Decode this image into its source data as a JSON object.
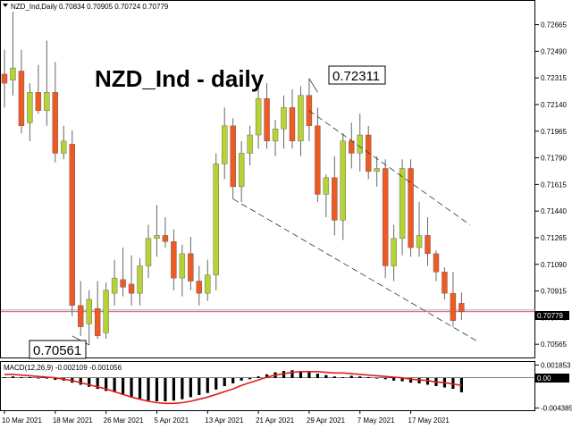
{
  "window": {
    "symbol_info": "NZD_Ind,Daily",
    "ohlc_readout": "0.70834 0.70905 0.70724 0.70779"
  },
  "annotations": {
    "title": "NZD_Ind - daily",
    "high_label": "0.72311",
    "low_label": "0.70561",
    "current_price_label": "0.70779"
  },
  "colors": {
    "bull": "#b5d334",
    "bear": "#ee5a24",
    "wick": "#666666",
    "signal": "#e11d1d",
    "histogram": "#000000",
    "trendline": "#333333",
    "price_line": "#cc2222",
    "price_line_2": "#8888cc"
  },
  "chart_data": [
    {
      "type": "candlestick",
      "x_tick_labels": [
        "10 Mar 2021",
        "18 Mar 2021",
        "26 Mar 2021",
        "5 Apr 2021",
        "13 Apr 2021",
        "21 Apr 2021",
        "29 Apr 2021",
        "7 May 2021",
        "17 May 2021"
      ],
      "x_tick_index": [
        0,
        6,
        12,
        18,
        24,
        30,
        36,
        42,
        48
      ],
      "ylim": [
        0.70478,
        0.72821
      ],
      "y_tick_labels": [
        "0.72665",
        "0.72490",
        "0.72315",
        "0.72140",
        "0.71965",
        "0.71790",
        "0.71615",
        "0.71440",
        "0.71265",
        "0.71090",
        "0.70915",
        "0.70740",
        "0.70565"
      ],
      "current_price": 0.70779,
      "price_line_2": 0.7079,
      "candles": [
        {
          "o": 0.7234,
          "h": 0.725,
          "l": 0.7212,
          "c": 0.7228
        },
        {
          "o": 0.723,
          "h": 0.7275,
          "l": 0.722,
          "c": 0.7238
        },
        {
          "o": 0.7236,
          "h": 0.725,
          "l": 0.7195,
          "c": 0.72
        },
        {
          "o": 0.7202,
          "h": 0.7228,
          "l": 0.719,
          "c": 0.7222
        },
        {
          "o": 0.7222,
          "h": 0.724,
          "l": 0.7208,
          "c": 0.721
        },
        {
          "o": 0.721,
          "h": 0.7256,
          "l": 0.72,
          "c": 0.7222
        },
        {
          "o": 0.7222,
          "h": 0.7242,
          "l": 0.7176,
          "c": 0.7182
        },
        {
          "o": 0.7182,
          "h": 0.72,
          "l": 0.7178,
          "c": 0.719
        },
        {
          "o": 0.7188,
          "h": 0.7197,
          "l": 0.7075,
          "c": 0.7082
        },
        {
          "o": 0.7082,
          "h": 0.7098,
          "l": 0.7062,
          "c": 0.7068
        },
        {
          "o": 0.707,
          "h": 0.7092,
          "l": 0.7056,
          "c": 0.7086
        },
        {
          "o": 0.708,
          "h": 0.7098,
          "l": 0.706,
          "c": 0.7062
        },
        {
          "o": 0.7064,
          "h": 0.7097,
          "l": 0.706,
          "c": 0.7092
        },
        {
          "o": 0.709,
          "h": 0.7112,
          "l": 0.7082,
          "c": 0.71
        },
        {
          "o": 0.7099,
          "h": 0.712,
          "l": 0.7088,
          "c": 0.7094
        },
        {
          "o": 0.7096,
          "h": 0.7115,
          "l": 0.7082,
          "c": 0.709
        },
        {
          "o": 0.709,
          "h": 0.7113,
          "l": 0.7082,
          "c": 0.7108
        },
        {
          "o": 0.7108,
          "h": 0.7135,
          "l": 0.71,
          "c": 0.7126
        },
        {
          "o": 0.7126,
          "h": 0.7148,
          "l": 0.7114,
          "c": 0.7128
        },
        {
          "o": 0.7128,
          "h": 0.714,
          "l": 0.712,
          "c": 0.7124
        },
        {
          "o": 0.7124,
          "h": 0.7132,
          "l": 0.7092,
          "c": 0.71
        },
        {
          "o": 0.71,
          "h": 0.7122,
          "l": 0.7088,
          "c": 0.7116
        },
        {
          "o": 0.7116,
          "h": 0.7127,
          "l": 0.7092,
          "c": 0.7098
        },
        {
          "o": 0.7098,
          "h": 0.7108,
          "l": 0.7082,
          "c": 0.709
        },
        {
          "o": 0.709,
          "h": 0.7112,
          "l": 0.7085,
          "c": 0.7102
        },
        {
          "o": 0.7102,
          "h": 0.7182,
          "l": 0.7092,
          "c": 0.7175
        },
        {
          "o": 0.7175,
          "h": 0.7212,
          "l": 0.7165,
          "c": 0.72
        },
        {
          "o": 0.72,
          "h": 0.7205,
          "l": 0.7152,
          "c": 0.716
        },
        {
          "o": 0.716,
          "h": 0.719,
          "l": 0.715,
          "c": 0.7182
        },
        {
          "o": 0.7182,
          "h": 0.72,
          "l": 0.7174,
          "c": 0.7194
        },
        {
          "o": 0.7194,
          "h": 0.7225,
          "l": 0.7185,
          "c": 0.7218
        },
        {
          "o": 0.7218,
          "h": 0.7228,
          "l": 0.7185,
          "c": 0.719
        },
        {
          "o": 0.719,
          "h": 0.7204,
          "l": 0.718,
          "c": 0.7198
        },
        {
          "o": 0.7198,
          "h": 0.722,
          "l": 0.7185,
          "c": 0.7212
        },
        {
          "o": 0.7212,
          "h": 0.7224,
          "l": 0.7185,
          "c": 0.719
        },
        {
          "o": 0.719,
          "h": 0.7226,
          "l": 0.718,
          "c": 0.722
        },
        {
          "o": 0.722,
          "h": 0.72311,
          "l": 0.719,
          "c": 0.72
        },
        {
          "o": 0.72,
          "h": 0.7212,
          "l": 0.715,
          "c": 0.7155
        },
        {
          "o": 0.7155,
          "h": 0.7168,
          "l": 0.714,
          "c": 0.7166
        },
        {
          "o": 0.7166,
          "h": 0.718,
          "l": 0.7128,
          "c": 0.7138
        },
        {
          "o": 0.7138,
          "h": 0.7195,
          "l": 0.7125,
          "c": 0.719
        },
        {
          "o": 0.719,
          "h": 0.7202,
          "l": 0.7172,
          "c": 0.7182
        },
        {
          "o": 0.7182,
          "h": 0.7208,
          "l": 0.717,
          "c": 0.7194
        },
        {
          "o": 0.7194,
          "h": 0.72,
          "l": 0.7165,
          "c": 0.717
        },
        {
          "o": 0.717,
          "h": 0.718,
          "l": 0.716,
          "c": 0.7172
        },
        {
          "o": 0.7172,
          "h": 0.7178,
          "l": 0.71,
          "c": 0.7108
        },
        {
          "o": 0.7108,
          "h": 0.7135,
          "l": 0.7098,
          "c": 0.7126
        },
        {
          "o": 0.7126,
          "h": 0.7178,
          "l": 0.7115,
          "c": 0.7172
        },
        {
          "o": 0.7172,
          "h": 0.7178,
          "l": 0.7114,
          "c": 0.712
        },
        {
          "o": 0.712,
          "h": 0.715,
          "l": 0.7114,
          "c": 0.7128
        },
        {
          "o": 0.7128,
          "h": 0.714,
          "l": 0.7108,
          "c": 0.7116
        },
        {
          "o": 0.7116,
          "h": 0.7118,
          "l": 0.7098,
          "c": 0.7104
        },
        {
          "o": 0.7104,
          "h": 0.7107,
          "l": 0.7086,
          "c": 0.709
        },
        {
          "o": 0.709,
          "h": 0.7104,
          "l": 0.7068,
          "c": 0.7072
        },
        {
          "o": 0.70834,
          "h": 0.70905,
          "l": 0.70724,
          "c": 0.70779
        }
      ],
      "trendlines": [
        {
          "style": "dashed",
          "from": [
            36,
            0.721
          ],
          "to": [
            55,
            0.7135
          ]
        },
        {
          "style": "dashed",
          "from": [
            27,
            0.7152
          ],
          "to": [
            56,
            0.7058
          ]
        },
        {
          "style": "solid",
          "from": [
            36,
            0.72311
          ],
          "to": [
            37,
            0.7222
          ]
        },
        {
          "style": "solid",
          "from": [
            8,
            0.7062
          ],
          "to": [
            10,
            0.70561
          ]
        }
      ]
    },
    {
      "type": "macd",
      "label": "MACD(12,26,9) -0.002109 -0.001056",
      "params": [
        12,
        26,
        9
      ],
      "ylim": [
        -0.0047,
        0.0023
      ],
      "y_tick_labels": [
        "0.001853",
        "0.00",
        "-0.004385"
      ],
      "histogram": [
        0.0001,
        0.0002,
        0.0001,
        0.0001,
        0.0,
        -0.0001,
        -0.0003,
        -0.0004,
        -0.0007,
        -0.001,
        -0.0013,
        -0.0016,
        -0.0019,
        -0.0021,
        -0.0025,
        -0.0028,
        -0.003,
        -0.0033,
        -0.0034,
        -0.0034,
        -0.0033,
        -0.0031,
        -0.0028,
        -0.0025,
        -0.0022,
        -0.0017,
        -0.0012,
        -0.0008,
        -0.0004,
        -0.0002,
        0.0002,
        0.0005,
        0.0008,
        0.001,
        0.0011,
        0.001,
        0.0008,
        0.0006,
        0.0004,
        0.0002,
        0.0001,
        0.0003,
        0.0002,
        0.0001,
        -0.0001,
        -0.0002,
        -0.0004,
        -0.0005,
        -0.0007,
        -0.0008,
        -0.001,
        -0.0012,
        -0.0014,
        -0.0016,
        -0.0021
      ],
      "signal": [
        0.0005,
        0.0005,
        0.0004,
        0.0003,
        0.0002,
        0.0001,
        0.0,
        -0.0002,
        -0.0004,
        -0.0007,
        -0.001,
        -0.0013,
        -0.0016,
        -0.002,
        -0.0024,
        -0.0028,
        -0.0031,
        -0.0034,
        -0.0036,
        -0.0037,
        -0.0037,
        -0.0036,
        -0.0034,
        -0.0031,
        -0.0028,
        -0.0024,
        -0.002,
        -0.0016,
        -0.0011,
        -0.0007,
        -0.0003,
        0.0001,
        0.0004,
        0.0006,
        0.0008,
        0.0009,
        0.0009,
        0.0009,
        0.0008,
        0.0007,
        0.0007,
        0.0006,
        0.0005,
        0.0004,
        0.0003,
        0.0002,
        0.0001,
        0.0,
        -0.0002,
        -0.0003,
        -0.0004,
        -0.0006,
        -0.0007,
        -0.0009,
        -0.0011
      ]
    }
  ]
}
